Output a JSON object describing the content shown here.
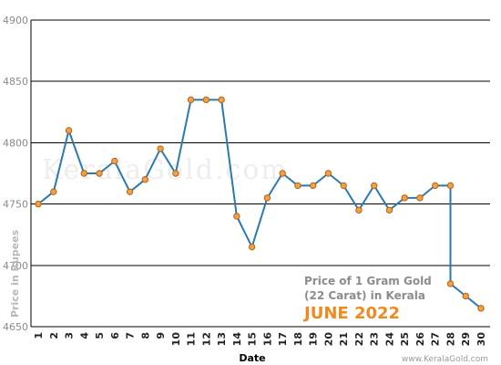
{
  "chart_data": {
    "type": "line",
    "x": [
      1,
      2,
      3,
      4,
      5,
      6,
      7,
      8,
      9,
      10,
      11,
      12,
      13,
      14,
      15,
      16,
      17,
      18,
      19,
      20,
      21,
      22,
      23,
      24,
      25,
      26,
      27,
      28,
      28,
      29,
      30
    ],
    "values": [
      4750,
      4760,
      4810,
      4775,
      4775,
      4785,
      4760,
      4770,
      4795,
      4775,
      4835,
      4835,
      4835,
      4740,
      4715,
      4755,
      4775,
      4765,
      4765,
      4775,
      4765,
      4745,
      4765,
      4745,
      4755,
      4755,
      4765,
      4765,
      4685,
      4675,
      4665
    ],
    "x_ticks": [
      "1",
      "2",
      "3",
      "4",
      "5",
      "6",
      "7",
      "8",
      "9",
      "10",
      "11",
      "12",
      "13",
      "14",
      "15",
      "16",
      "17",
      "18",
      "19",
      "20",
      "21",
      "22",
      "23",
      "24",
      "25",
      "26",
      "27",
      "28",
      "29",
      "30"
    ],
    "y_ticks": [
      "4650",
      "4700",
      "4750",
      "4800",
      "4850",
      "4900"
    ],
    "xlabel": "Date",
    "ylabel": "Price in Rupees",
    "ylim": [
      4650,
      4900
    ],
    "xlim": [
      1,
      30
    ],
    "grid": true,
    "line_color": "#2a7ab0",
    "marker_color": "#f3a040"
  },
  "annotation": {
    "line1": "Price of 1 Gram Gold",
    "line2": "(22 Carat) in Kerala",
    "line3": "JUNE 2022"
  },
  "watermark": "KeralaGold.com",
  "credit": "www.KeralaGold.com"
}
